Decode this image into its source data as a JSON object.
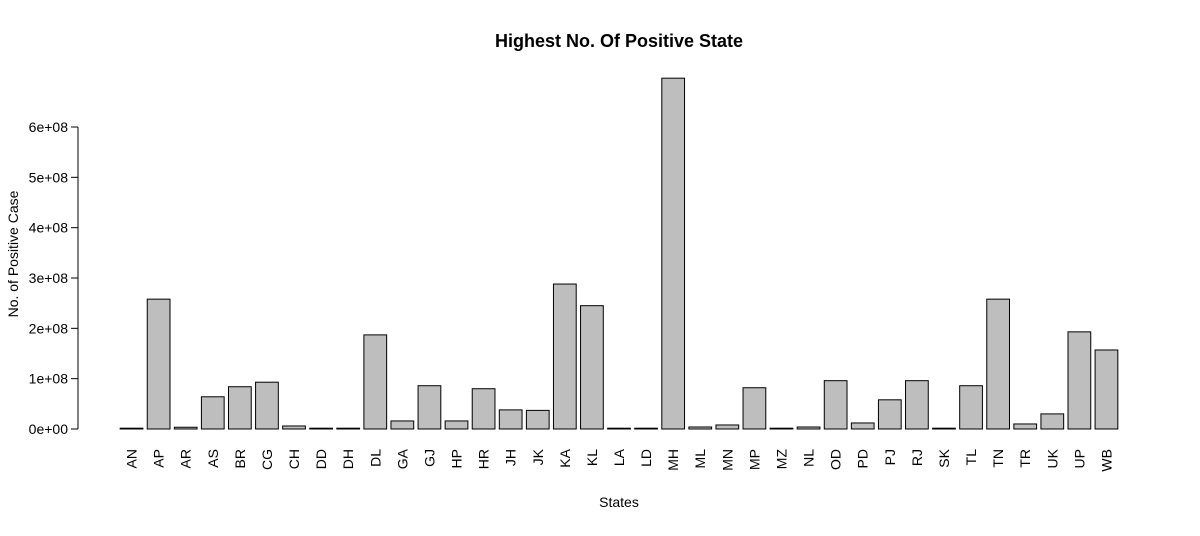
{
  "chart_data": {
    "type": "bar",
    "title": "Highest No. Of Positive State",
    "xlabel": "States",
    "ylabel": "No. of Positive Case",
    "ylim": [
      0,
      700000000
    ],
    "y_ticks": [
      {
        "value": 0,
        "label": "0e+00"
      },
      {
        "value": 100000000,
        "label": "1e+08"
      },
      {
        "value": 200000000,
        "label": "2e+08"
      },
      {
        "value": 300000000,
        "label": "3e+08"
      },
      {
        "value": 400000000,
        "label": "4e+08"
      },
      {
        "value": 500000000,
        "label": "5e+08"
      },
      {
        "value": 600000000,
        "label": "6e+08"
      }
    ],
    "grid": false,
    "bar_color": "#bebebe",
    "border_color": "#000000",
    "categories": [
      "AN",
      "AP",
      "AR",
      "AS",
      "BR",
      "CG",
      "CH",
      "DD",
      "DH",
      "DL",
      "GA",
      "GJ",
      "HP",
      "HR",
      "JH",
      "JK",
      "KA",
      "KL",
      "LA",
      "LD",
      "MH",
      "ML",
      "MN",
      "MP",
      "MZ",
      "NL",
      "OD",
      "PD",
      "PJ",
      "RJ",
      "SK",
      "TL",
      "TN",
      "TR",
      "UK",
      "UP",
      "WB"
    ],
    "values": [
      1500000,
      258000000,
      3500000,
      64000000,
      84000000,
      93000000,
      6000000,
      200000,
      1000000,
      187000000,
      16000000,
      86000000,
      16000000,
      80000000,
      38000000,
      37000000,
      288000000,
      245000000,
      1500000,
      300000,
      697000000,
      4000000,
      8000000,
      82000000,
      1500000,
      4000000,
      96000000,
      12000000,
      58000000,
      96000000,
      1500000,
      86000000,
      258000000,
      10000000,
      30000000,
      193000000,
      157000000
    ]
  }
}
